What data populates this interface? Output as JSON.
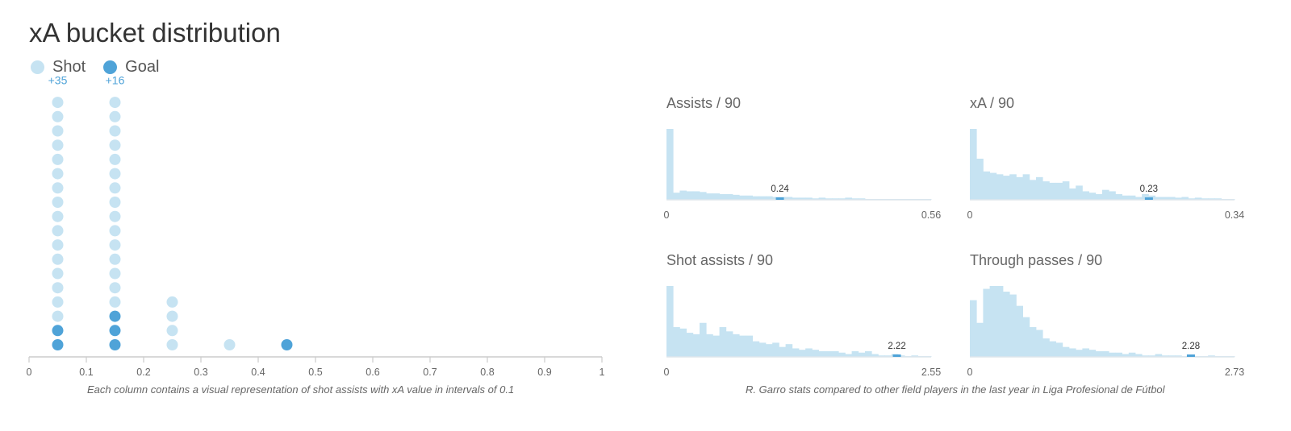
{
  "title": "xA bucket distribution",
  "legend": {
    "shot_label": "Shot",
    "goal_label": "Goal",
    "shot_color": "#c6e3f2",
    "goal_color": "#4fa3d8"
  },
  "captions": {
    "left": "Each column contains a visual representation of shot assists with xA value in intervals of 0.1",
    "right": "R. Garro stats compared to other field players in the last year in Liga Profesional de Fútbol"
  },
  "chart_data": [
    {
      "type": "scatter",
      "title": "xA bucket distribution",
      "xlim": [
        0,
        1
      ],
      "x_ticks": [
        "0",
        "0.1",
        "0.2",
        "0.3",
        "0.4",
        "0.5",
        "0.6",
        "0.7",
        "0.8",
        "0.9",
        "1"
      ],
      "buckets": [
        {
          "x": 0.05,
          "shots": 16,
          "goals": 2,
          "overflow": "+35"
        },
        {
          "x": 0.15,
          "shots": 15,
          "goals": 3,
          "overflow": "+16"
        },
        {
          "x": 0.25,
          "shots": 4,
          "goals": 0,
          "overflow": ""
        },
        {
          "x": 0.35,
          "shots": 1,
          "goals": 0,
          "overflow": ""
        },
        {
          "x": 0.45,
          "shots": 0,
          "goals": 1,
          "overflow": ""
        }
      ]
    },
    {
      "type": "bar",
      "title": "Assists / 90",
      "xlim": [
        0,
        0.56
      ],
      "x_min_label": "0",
      "x_max_label": "0.56",
      "marker_value": 0.24,
      "marker_label": "0.24",
      "values": [
        100,
        10,
        13,
        12,
        12,
        11,
        9,
        9,
        8,
        8,
        7,
        6,
        6,
        5,
        5,
        5,
        4,
        4,
        4,
        3,
        3,
        3,
        2,
        3,
        2,
        2,
        2,
        3,
        2,
        2,
        1,
        1,
        1,
        1,
        1,
        1,
        1,
        1,
        1,
        1
      ]
    },
    {
      "type": "bar",
      "title": "xA / 90",
      "xlim": [
        0,
        0.34
      ],
      "x_min_label": "0",
      "x_max_label": "0.34",
      "marker_value": 0.23,
      "marker_label": "0.23",
      "values": [
        100,
        58,
        40,
        38,
        36,
        34,
        36,
        32,
        36,
        28,
        32,
        26,
        24,
        24,
        26,
        16,
        20,
        12,
        10,
        8,
        14,
        12,
        8,
        6,
        6,
        4,
        8,
        6,
        4,
        4,
        4,
        3,
        4,
        2,
        3,
        2,
        2,
        2,
        1,
        1
      ]
    },
    {
      "type": "bar",
      "title": "Shot assists / 90",
      "xlim": [
        0,
        2.55
      ],
      "x_min_label": "0",
      "x_max_label": "2.55",
      "marker_value": 2.22,
      "marker_label": "2.22",
      "values": [
        100,
        42,
        40,
        34,
        32,
        48,
        32,
        30,
        42,
        36,
        32,
        30,
        30,
        22,
        20,
        18,
        20,
        14,
        18,
        12,
        10,
        12,
        10,
        8,
        8,
        8,
        6,
        4,
        8,
        6,
        8,
        4,
        2,
        2,
        4,
        2,
        1,
        2,
        1,
        1
      ]
    },
    {
      "type": "bar",
      "title": "Through passes / 90",
      "xlim": [
        0,
        2.73
      ],
      "x_min_label": "0",
      "x_max_label": "2.73",
      "marker_value": 2.28,
      "marker_label": "2.28",
      "values": [
        80,
        48,
        96,
        100,
        100,
        92,
        88,
        72,
        56,
        42,
        38,
        26,
        22,
        20,
        14,
        12,
        10,
        12,
        10,
        8,
        8,
        6,
        6,
        4,
        6,
        4,
        2,
        2,
        4,
        2,
        2,
        2,
        1,
        2,
        1,
        1,
        2,
        1,
        1,
        1
      ]
    }
  ]
}
